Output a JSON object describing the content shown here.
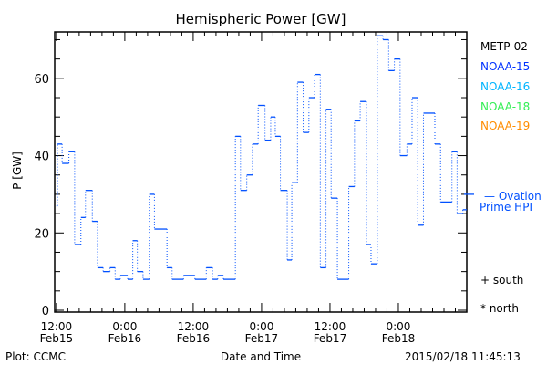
{
  "chart_data": {
    "type": "line",
    "title": "Hemispheric Power [GW]",
    "xlabel": "Date and Time",
    "ylabel": "P [GW]",
    "x_units": "hours since 2015-02-15 12:00",
    "xlim": [
      -0.3,
      72
    ],
    "ylim": [
      0,
      72
    ],
    "y_ticks": [
      0,
      20,
      40,
      60
    ],
    "y_tick_labels": [
      "0",
      "20",
      "40",
      "60"
    ],
    "x_ticks": [
      0,
      12,
      24,
      36,
      48,
      60
    ],
    "x_tick_labels": [
      [
        "12:00",
        "Feb15"
      ],
      [
        "0:00",
        "Feb16"
      ],
      [
        "12:00",
        "Feb16"
      ],
      [
        "0:00",
        "Feb17"
      ],
      [
        "12:00",
        "Feb17"
      ],
      [
        "0:00",
        "Feb18"
      ]
    ],
    "legend": [
      {
        "name": "METP-02",
        "color": "#000000"
      },
      {
        "name": "NOAA-15",
        "color": "#0033ff"
      },
      {
        "name": "NOAA-16",
        "color": "#00b4ff"
      },
      {
        "name": "NOAA-18",
        "color": "#33ee55"
      },
      {
        "name": "NOAA-19",
        "color": "#ff8c00"
      }
    ],
    "series": [
      {
        "name": "NOAA-15",
        "color": "#0050ff",
        "style": "step",
        "points": [
          [
            0,
            27
          ],
          [
            0.2,
            43
          ],
          [
            1,
            38
          ],
          [
            2.2,
            41
          ],
          [
            3.2,
            17
          ],
          [
            4.3,
            24
          ],
          [
            5.1,
            31
          ],
          [
            6.3,
            23
          ],
          [
            7.2,
            11
          ],
          [
            8.2,
            10
          ],
          [
            9.4,
            11
          ],
          [
            10.3,
            8
          ],
          [
            11.2,
            9
          ],
          [
            12.5,
            8
          ],
          [
            13.4,
            18
          ],
          [
            14.2,
            10
          ],
          [
            15.2,
            8
          ],
          [
            16.3,
            30
          ],
          [
            17.2,
            21
          ],
          [
            19.4,
            11
          ],
          [
            20.3,
            8
          ],
          [
            22.3,
            9
          ],
          [
            24.3,
            8
          ],
          [
            26.3,
            11
          ],
          [
            27.4,
            8
          ],
          [
            28.3,
            9
          ],
          [
            29.3,
            8
          ],
          [
            31.4,
            45
          ],
          [
            32.3,
            31
          ],
          [
            33.4,
            35
          ],
          [
            34.4,
            43
          ],
          [
            35.4,
            53
          ],
          [
            36.6,
            44
          ],
          [
            37.6,
            50
          ],
          [
            38.4,
            45
          ],
          [
            39.3,
            31
          ],
          [
            40.5,
            13
          ],
          [
            41.3,
            33
          ],
          [
            42.3,
            59
          ],
          [
            43.3,
            46
          ],
          [
            44.3,
            55
          ],
          [
            45.3,
            61
          ],
          [
            46.3,
            11
          ],
          [
            47.3,
            52
          ],
          [
            48.2,
            29
          ],
          [
            49.3,
            8
          ],
          [
            51.3,
            32
          ],
          [
            52.3,
            49
          ],
          [
            53.3,
            54
          ],
          [
            54.4,
            17
          ],
          [
            55.2,
            12
          ],
          [
            56.3,
            71
          ],
          [
            57.3,
            70
          ],
          [
            58.3,
            62
          ],
          [
            59.3,
            65
          ],
          [
            60.3,
            40
          ],
          [
            61.5,
            43
          ],
          [
            62.4,
            55
          ],
          [
            63.4,
            22
          ],
          [
            64.4,
            51
          ],
          [
            66.4,
            43
          ],
          [
            67.4,
            28
          ],
          [
            69.4,
            41
          ],
          [
            70.3,
            25
          ],
          [
            71.3,
            26
          ]
        ],
        "end": 72
      }
    ],
    "ovation_prime_hpi": {
      "label_line1": "— Ovation",
      "label_line2": "Prime HPI",
      "value": 30,
      "color": "#0050ff"
    },
    "markers_legend": {
      "south": "+ south",
      "north": "* north"
    },
    "footer_left": "Plot: CCMC",
    "footer_right": "2015/02/18 11:45:13"
  }
}
